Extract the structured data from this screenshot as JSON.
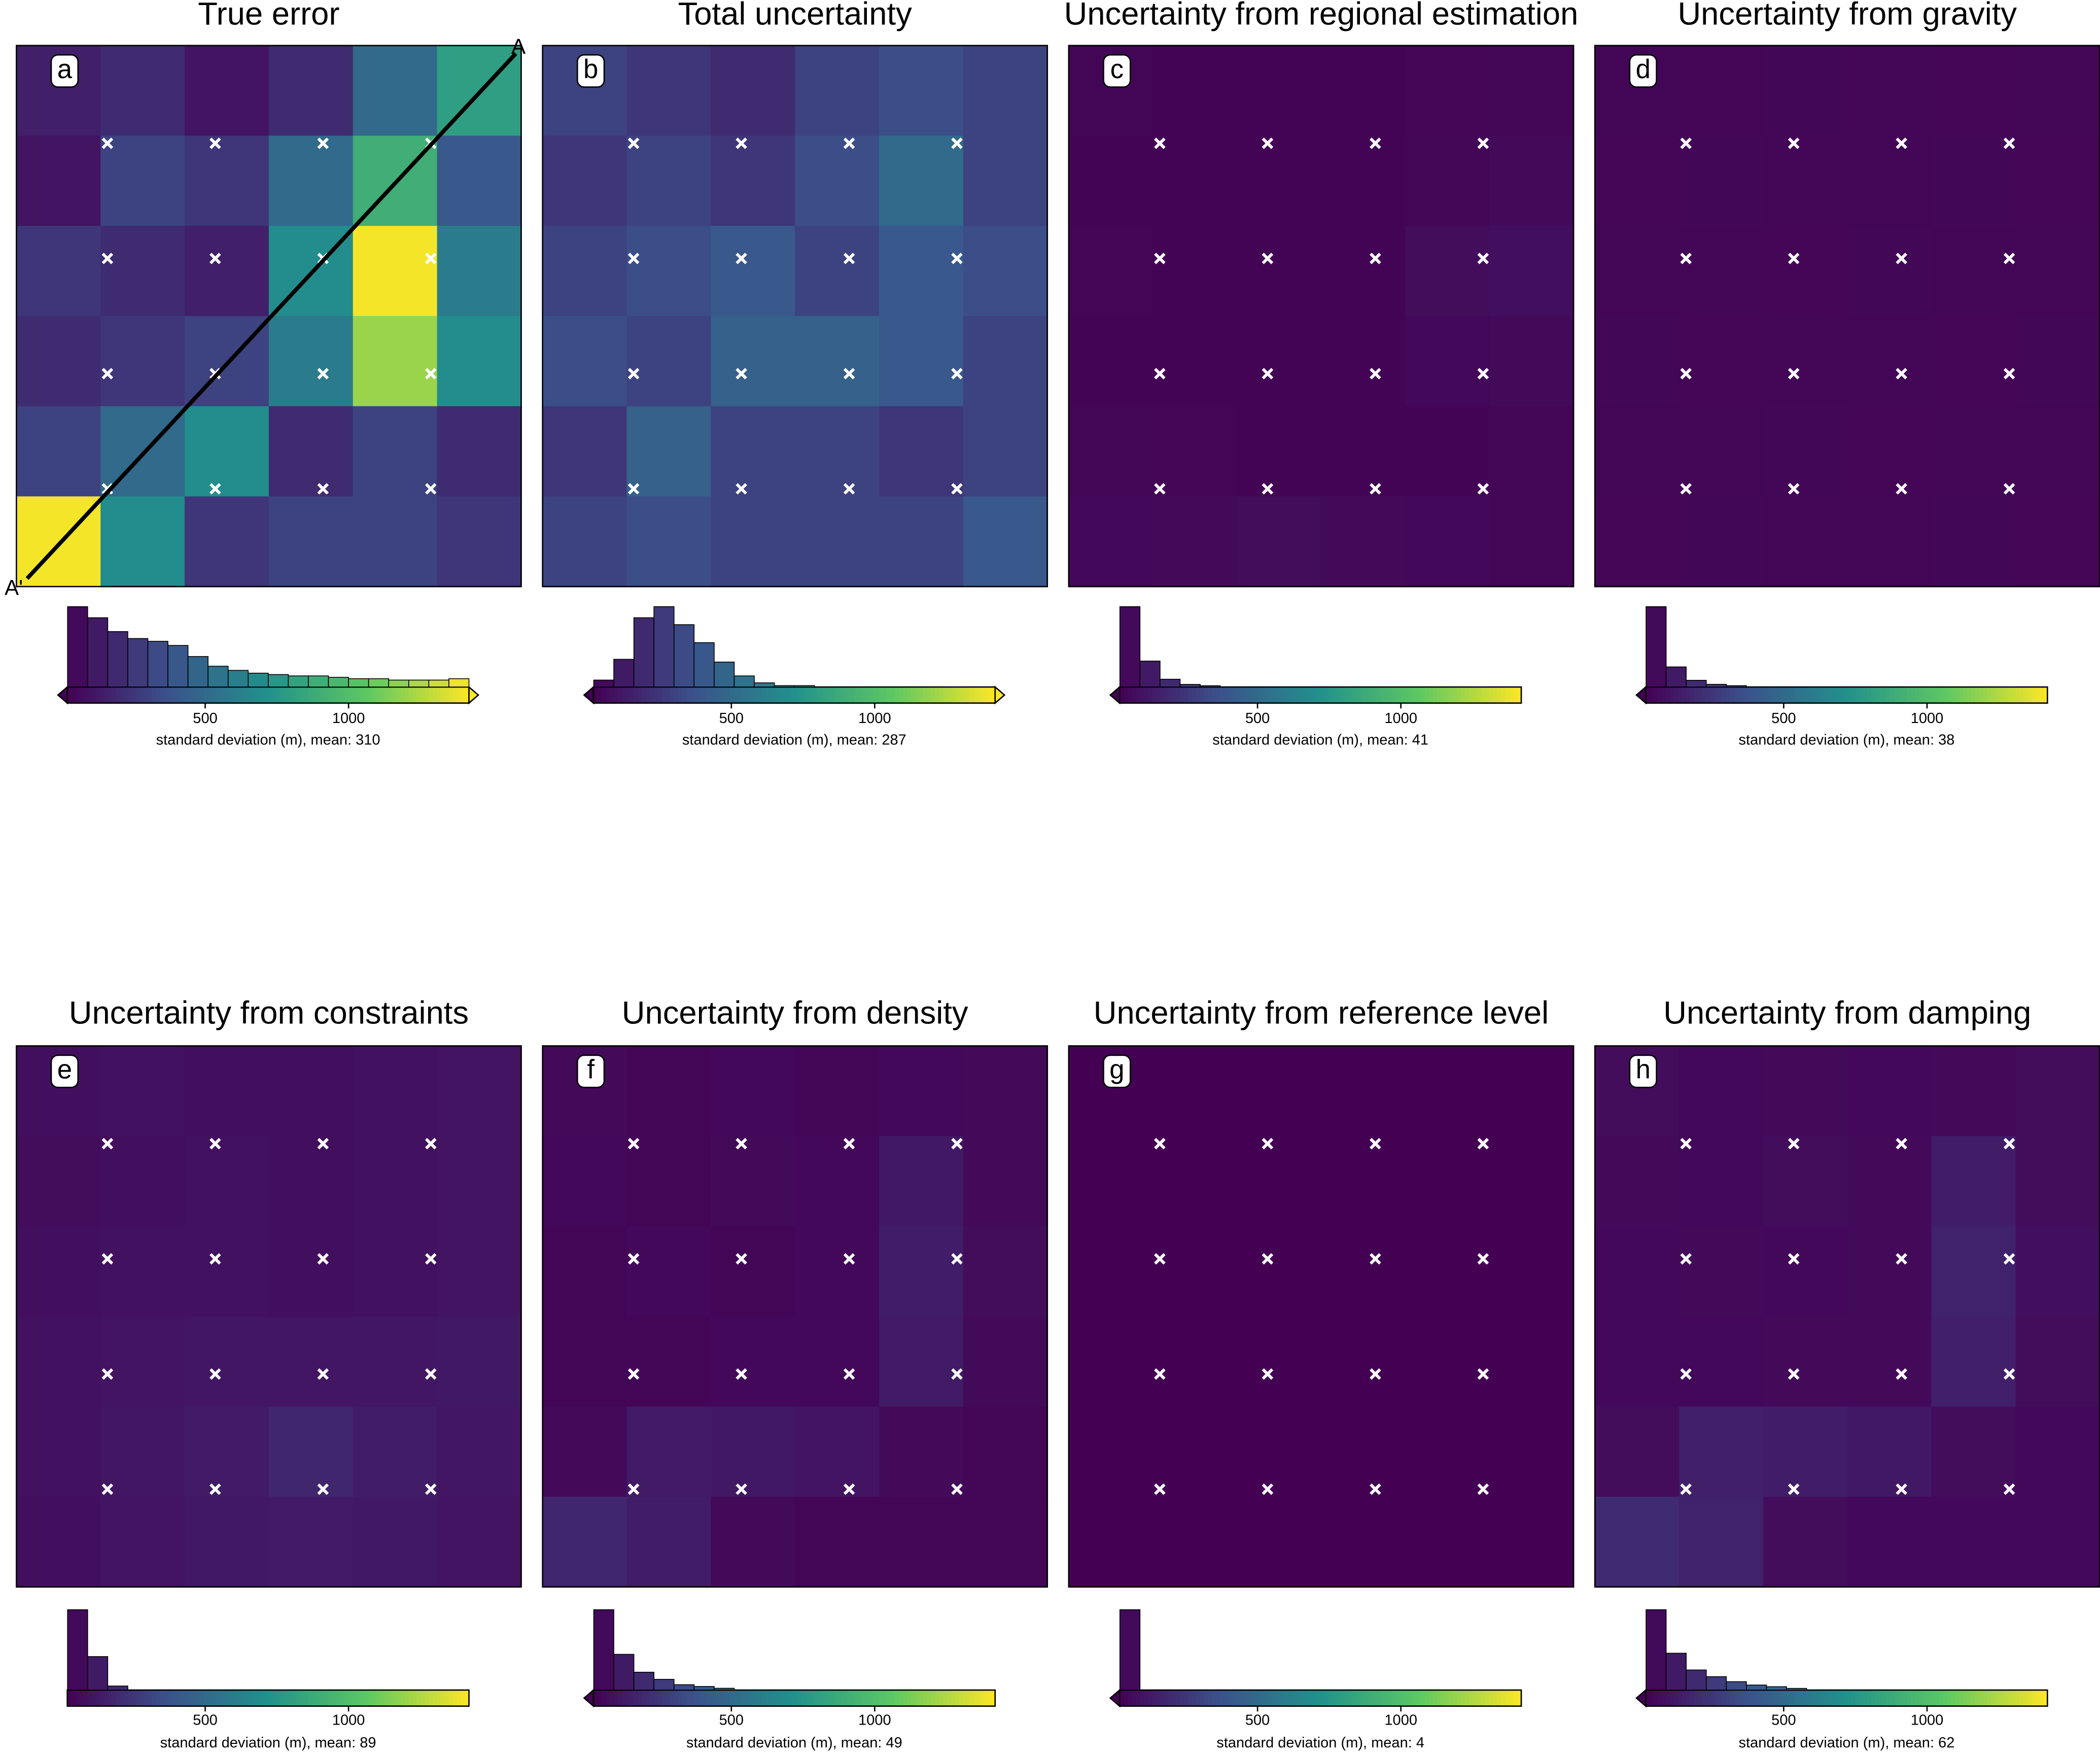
{
  "chart_data": [
    {
      "type": "heatmap",
      "title": "True error",
      "letter": "a",
      "colormap": "viridis",
      "extend": "both",
      "grid": [
        [
          150,
          200,
          100,
          200,
          500,
          800
        ],
        [
          100,
          300,
          250,
          500,
          900,
          400
        ],
        [
          250,
          200,
          150,
          700,
          1400,
          600
        ],
        [
          200,
          250,
          300,
          600,
          1200,
          700
        ],
        [
          300,
          500,
          700,
          200,
          300,
          200
        ],
        [
          1400,
          700,
          250,
          300,
          300,
          250
        ]
      ],
      "bins": [
        20,
        90,
        160,
        230,
        300,
        370,
        440,
        510,
        580,
        650,
        720,
        790,
        860,
        930,
        1000,
        1070,
        1140,
        1210,
        1280,
        1350,
        1420
      ],
      "counts": [
        58,
        50,
        40,
        35,
        33,
        30,
        22,
        15,
        12,
        10,
        9,
        8,
        8,
        7,
        6,
        6,
        5,
        5,
        5,
        6
      ],
      "clim": [
        19,
        1420
      ],
      "cticks": [
        500,
        1000
      ],
      "xlabel": "standard deviation (m), mean: 310",
      "profile": {
        "start_label": "A",
        "end_label": "A'"
      }
    },
    {
      "type": "heatmap",
      "title": "Total uncertainty",
      "letter": "b",
      "colormap": "viridis",
      "extend": "both",
      "grid": [
        [
          300,
          250,
          200,
          300,
          350,
          300
        ],
        [
          250,
          300,
          250,
          350,
          500,
          300
        ],
        [
          300,
          350,
          400,
          300,
          400,
          350
        ],
        [
          350,
          300,
          450,
          450,
          400,
          300
        ],
        [
          250,
          450,
          300,
          300,
          250,
          300
        ],
        [
          300,
          350,
          300,
          300,
          300,
          400
        ]
      ],
      "bins": [
        20,
        90,
        160,
        230,
        300,
        370,
        440,
        510,
        580,
        650,
        720,
        790,
        860,
        930,
        1000,
        1070,
        1140,
        1210,
        1280,
        1350,
        1420
      ],
      "counts": [
        5,
        20,
        50,
        58,
        45,
        32,
        18,
        8,
        3,
        1,
        1,
        0,
        0,
        0,
        0,
        0,
        0,
        0,
        0,
        0
      ],
      "clim": [
        19,
        1420
      ],
      "cticks": [
        500,
        1000
      ],
      "xlabel": "standard deviation (m), mean: 287"
    },
    {
      "type": "heatmap",
      "title": "Uncertainty from regional estimation",
      "letter": "c",
      "colormap": "viridis",
      "extend": "min",
      "grid": [
        [
          40,
          30,
          30,
          30,
          35,
          40
        ],
        [
          30,
          30,
          30,
          30,
          40,
          60
        ],
        [
          35,
          30,
          30,
          30,
          70,
          80
        ],
        [
          30,
          30,
          30,
          30,
          50,
          60
        ],
        [
          40,
          35,
          30,
          30,
          30,
          40
        ],
        [
          50,
          60,
          70,
          60,
          50,
          40
        ]
      ],
      "bins": [
        20,
        90,
        160,
        230,
        300,
        370,
        440,
        510,
        580,
        650,
        720,
        790,
        860,
        930,
        1000,
        1070,
        1140,
        1210,
        1280,
        1350,
        1420
      ],
      "counts": [
        62,
        20,
        6,
        2,
        1,
        0,
        0,
        0,
        0,
        0,
        0,
        0,
        0,
        0,
        0,
        0,
        0,
        0,
        0,
        0
      ],
      "clim": [
        19,
        1420
      ],
      "cticks": [
        500,
        1000
      ],
      "xlabel": "standard deviation (m), mean: 41"
    },
    {
      "type": "heatmap",
      "title": "Uncertainty from gravity",
      "letter": "d",
      "colormap": "viridis",
      "extend": "min",
      "grid": [
        [
          40,
          35,
          45,
          40,
          35,
          40
        ],
        [
          35,
          45,
          40,
          40,
          45,
          35
        ],
        [
          40,
          40,
          35,
          45,
          40,
          40
        ],
        [
          45,
          35,
          40,
          40,
          35,
          45
        ],
        [
          40,
          40,
          45,
          35,
          40,
          40
        ],
        [
          35,
          45,
          40,
          40,
          45,
          35
        ]
      ],
      "bins": [
        20,
        90,
        160,
        230,
        300,
        370,
        440,
        510,
        580,
        650,
        720,
        790,
        860,
        930,
        1000,
        1070,
        1140,
        1210,
        1280,
        1350,
        1420
      ],
      "counts": [
        60,
        15,
        5,
        2,
        1,
        0,
        0,
        0,
        0,
        0,
        0,
        0,
        0,
        0,
        0,
        0,
        0,
        0,
        0,
        0
      ],
      "clim": [
        19,
        1420
      ],
      "cticks": [
        500,
        1000
      ],
      "xlabel": "standard deviation (m), mean: 38"
    },
    {
      "type": "heatmap",
      "title": "Uncertainty from constraints",
      "letter": "e",
      "colormap": "viridis",
      "extend": "neither",
      "grid": [
        [
          80,
          90,
          80,
          80,
          90,
          100
        ],
        [
          70,
          80,
          90,
          80,
          90,
          100
        ],
        [
          80,
          90,
          90,
          80,
          90,
          100
        ],
        [
          90,
          100,
          110,
          110,
          110,
          120
        ],
        [
          90,
          110,
          130,
          180,
          140,
          110
        ],
        [
          80,
          100,
          120,
          130,
          120,
          100
        ]
      ],
      "bins": [
        20,
        90,
        160,
        230,
        300,
        370,
        440,
        510,
        580,
        650,
        720,
        790,
        860,
        930,
        1000,
        1070,
        1140,
        1210,
        1280,
        1350,
        1420
      ],
      "counts": [
        60,
        25,
        3,
        0,
        0,
        0,
        0,
        0,
        0,
        0,
        0,
        0,
        0,
        0,
        0,
        0,
        0,
        0,
        0,
        0
      ],
      "clim": [
        19,
        1420
      ],
      "cticks": [
        500,
        1000
      ],
      "xlabel": "standard deviation (m), mean: 89"
    },
    {
      "type": "heatmap",
      "title": "Uncertainty from density",
      "letter": "f",
      "colormap": "viridis",
      "extend": "min",
      "grid": [
        [
          60,
          40,
          50,
          40,
          50,
          60
        ],
        [
          50,
          40,
          60,
          50,
          120,
          60
        ],
        [
          40,
          50,
          40,
          50,
          140,
          70
        ],
        [
          40,
          40,
          50,
          50,
          130,
          60
        ],
        [
          60,
          130,
          120,
          100,
          60,
          40
        ],
        [
          180,
          140,
          60,
          40,
          40,
          40
        ]
      ],
      "bins": [
        20,
        90,
        160,
        230,
        300,
        370,
        440,
        510,
        580,
        650,
        720,
        790,
        860,
        930,
        1000,
        1070,
        1140,
        1210,
        1280,
        1350,
        1420
      ],
      "counts": [
        45,
        20,
        10,
        6,
        3,
        2,
        1,
        0,
        0,
        0,
        0,
        0,
        0,
        0,
        0,
        0,
        0,
        0,
        0,
        0
      ],
      "clim": [
        19,
        1420
      ],
      "cticks": [
        500,
        1000
      ],
      "xlabel": "standard deviation (m), mean: 49"
    },
    {
      "type": "heatmap",
      "title": "Uncertainty from reference level",
      "letter": "g",
      "colormap": "viridis",
      "extend": "min",
      "grid": [
        [
          4,
          3,
          4,
          4,
          3,
          4
        ],
        [
          4,
          4,
          3,
          4,
          4,
          4
        ],
        [
          3,
          4,
          4,
          4,
          4,
          3
        ],
        [
          4,
          4,
          4,
          3,
          4,
          4
        ],
        [
          4,
          3,
          4,
          4,
          4,
          4
        ],
        [
          4,
          4,
          4,
          4,
          3,
          4
        ]
      ],
      "bins": [
        20,
        90,
        160,
        230,
        300,
        370,
        440,
        510,
        580,
        650,
        720,
        790,
        860,
        930,
        1000,
        1070,
        1140,
        1210,
        1280,
        1350,
        1420
      ],
      "counts": [
        65,
        0,
        0,
        0,
        0,
        0,
        0,
        0,
        0,
        0,
        0,
        0,
        0,
        0,
        0,
        0,
        0,
        0,
        0,
        0
      ],
      "clim": [
        19,
        1420
      ],
      "cticks": [
        500,
        1000
      ],
      "xlabel": "standard deviation (m), mean: 4"
    },
    {
      "type": "heatmap",
      "title": "Uncertainty from damping",
      "letter": "h",
      "colormap": "viridis",
      "extend": "min",
      "grid": [
        [
          70,
          50,
          60,
          50,
          60,
          70
        ],
        [
          60,
          50,
          70,
          60,
          140,
          70
        ],
        [
          50,
          60,
          50,
          60,
          160,
          80
        ],
        [
          50,
          50,
          60,
          60,
          150,
          70
        ],
        [
          70,
          150,
          140,
          120,
          70,
          50
        ],
        [
          200,
          160,
          70,
          50,
          50,
          50
        ]
      ],
      "bins": [
        20,
        90,
        160,
        230,
        300,
        370,
        440,
        510,
        580,
        650,
        720,
        790,
        860,
        930,
        1000,
        1070,
        1140,
        1210,
        1280,
        1350,
        1420
      ],
      "counts": [
        48,
        22,
        12,
        8,
        5,
        3,
        2,
        1,
        0,
        0,
        0,
        0,
        0,
        0,
        0,
        0,
        0,
        0,
        0,
        0
      ],
      "clim": [
        19,
        1420
      ],
      "cticks": [
        500,
        1000
      ],
      "xlabel": "standard deviation (m), mean: 62"
    }
  ]
}
